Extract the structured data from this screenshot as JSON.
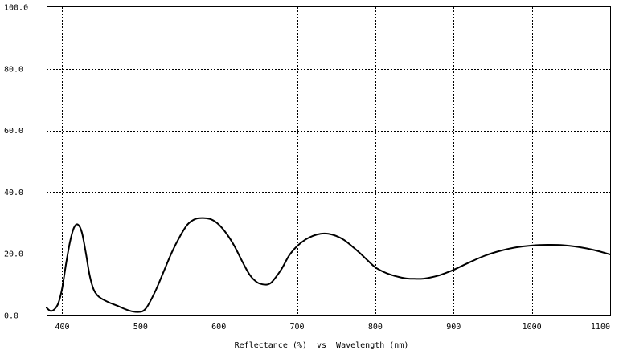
{
  "chart_data": {
    "type": "line",
    "title": "",
    "xlabel": "Reflectance (%)  vs  Wavelength (nm)",
    "ylabel": "",
    "xlim": [
      380,
      1100
    ],
    "ylim": [
      0,
      100
    ],
    "grid": true,
    "x_ticks": [
      400,
      500,
      600,
      700,
      800,
      900,
      1000,
      1100
    ],
    "x_tick_labels": [
      "400",
      "500",
      "600",
      "700",
      "800",
      "900",
      "1000",
      "1100"
    ],
    "y_ticks": [
      0,
      20,
      40,
      60,
      80,
      100
    ],
    "y_tick_labels": [
      "0.0",
      "20.0",
      "40.0",
      "60.0",
      "80.0",
      "100.0"
    ],
    "series": [
      {
        "color": "#000000",
        "x": [
          380,
          385,
          390,
          395,
          400,
          405,
          410,
          415,
          420,
          425,
          430,
          435,
          440,
          445,
          450,
          460,
          470,
          480,
          490,
          500,
          505,
          510,
          520,
          530,
          540,
          550,
          560,
          570,
          580,
          590,
          600,
          610,
          620,
          630,
          640,
          650,
          660,
          665,
          670,
          680,
          690,
          700,
          710,
          720,
          730,
          740,
          750,
          760,
          770,
          780,
          790,
          800,
          810,
          820,
          830,
          840,
          850,
          860,
          870,
          880,
          890,
          900,
          920,
          940,
          960,
          980,
          1000,
          1020,
          1040,
          1060,
          1080,
          1100
        ],
        "y": [
          2.5,
          1.5,
          2.0,
          4.0,
          9.0,
          17.0,
          24.0,
          28.5,
          29.5,
          27.0,
          20.5,
          13.0,
          8.5,
          6.5,
          5.5,
          4.2,
          3.2,
          2.1,
          1.3,
          1.2,
          1.8,
          3.5,
          8.5,
          14.5,
          20.5,
          25.5,
          29.5,
          31.3,
          31.6,
          31.2,
          29.5,
          26.5,
          22.5,
          17.5,
          13.0,
          10.6,
          10.0,
          10.3,
          11.5,
          15.0,
          19.5,
          22.5,
          24.5,
          25.8,
          26.5,
          26.5,
          25.8,
          24.5,
          22.5,
          20.3,
          17.9,
          15.6,
          14.2,
          13.2,
          12.5,
          12.0,
          11.9,
          11.9,
          12.3,
          12.9,
          13.8,
          14.8,
          17.2,
          19.4,
          21.0,
          22.1,
          22.7,
          22.9,
          22.8,
          22.2,
          21.2,
          19.8
        ]
      }
    ]
  }
}
